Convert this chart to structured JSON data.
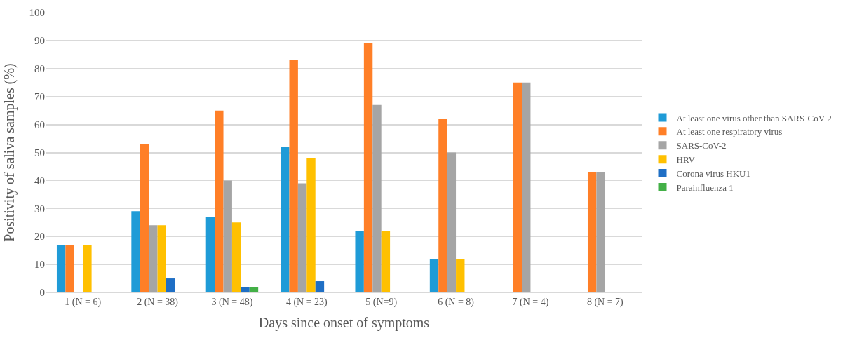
{
  "chart_data": {
    "type": "bar",
    "xlabel": "Days since onset of symptoms",
    "ylabel": "Positivity of saliva samples (%)",
    "categories": [
      "1 (N = 6)",
      "2 (N = 38)",
      "3 (N = 48)",
      "4 (N = 23)",
      "5 (N=9)",
      "6 (N = 8)",
      "7 (N = 4)",
      "8 (N = 7)"
    ],
    "series": [
      {
        "name": "At least one virus other than SARS-CoV-2",
        "color": "#1f9bd7",
        "values": [
          17,
          29,
          27,
          52,
          22,
          12,
          0,
          0
        ]
      },
      {
        "name": "At least one respiratory virus",
        "color": "#ff7f27",
        "values": [
          17,
          53,
          65,
          83,
          89,
          62,
          75,
          43
        ]
      },
      {
        "name": "SARS-CoV-2",
        "color": "#a5a5a5",
        "values": [
          0,
          24,
          40,
          39,
          67,
          50,
          75,
          43
        ]
      },
      {
        "name": "HRV",
        "color": "#ffc000",
        "values": [
          17,
          24,
          25,
          48,
          22,
          12,
          0,
          0
        ]
      },
      {
        "name": "Corona virus HKU1",
        "color": "#1f6fc5",
        "values": [
          0,
          5,
          2,
          4,
          0,
          0,
          0,
          0
        ]
      },
      {
        "name": "Parainfluenza 1",
        "color": "#43b047",
        "values": [
          0,
          0,
          2,
          0,
          0,
          0,
          0,
          0
        ]
      }
    ],
    "ylim": [
      0,
      100
    ],
    "yticks": [
      0,
      10,
      20,
      30,
      40,
      50,
      60,
      70,
      80,
      90,
      100
    ],
    "grid": "y",
    "legend": "right"
  }
}
